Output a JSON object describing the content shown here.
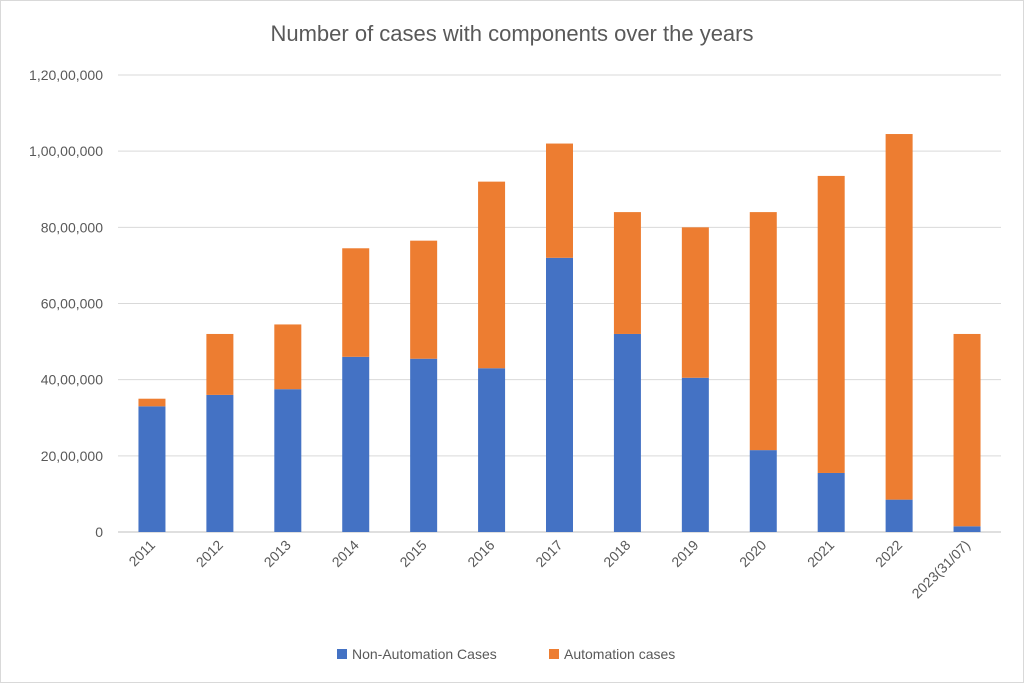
{
  "chart_data": {
    "type": "bar",
    "stacked": true,
    "title": "Number of cases with components over the years",
    "xlabel": "",
    "ylabel": "",
    "categories": [
      "2011",
      "2012",
      "2013",
      "2014",
      "2015",
      "2016",
      "2017",
      "2018",
      "2019",
      "2020",
      "2021",
      "2022",
      "2023(31/07)"
    ],
    "series": [
      {
        "name": "Non-Automation Cases",
        "color": "#4472c4",
        "values": [
          3300000,
          3600000,
          3750000,
          4600000,
          4550000,
          4300000,
          7200000,
          5200000,
          4050000,
          2150000,
          1550000,
          850000,
          150000
        ]
      },
      {
        "name": "Automation cases",
        "color": "#ed7d31",
        "values": [
          200000,
          1600000,
          1700000,
          2850000,
          3100000,
          4900000,
          3000000,
          3200000,
          3950000,
          6250000,
          7800000,
          9600000,
          5050000
        ]
      }
    ],
    "ylim": [
      0,
      12000000
    ],
    "y_ticks": [
      0,
      2000000,
      4000000,
      6000000,
      8000000,
      10000000,
      12000000
    ],
    "y_tick_labels": [
      "0",
      "20,00,000",
      "40,00,000",
      "60,00,000",
      "80,00,000",
      "1,00,00,000",
      "1,20,00,000"
    ],
    "grid": true,
    "legend_position": "bottom"
  }
}
